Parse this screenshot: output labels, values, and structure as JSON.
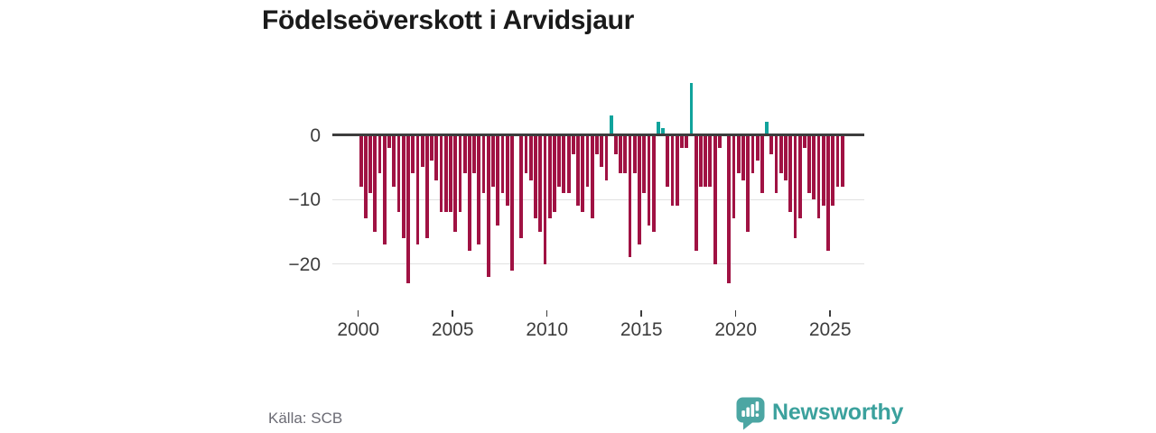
{
  "title": "Födelseöverskott i Arvidsjaur",
  "source": "Källa: SCB",
  "brand": {
    "name": "Newsworthy"
  },
  "colors": {
    "negative_bar": "#a01243",
    "positive_bar": "#10a39c",
    "zero_axis": "#3d3d3d",
    "gridline": "#e1e1e1",
    "brand_teal": "#4ca6a3"
  },
  "chart_data": {
    "type": "bar",
    "title": "Födelseöverskott i Arvidsjaur",
    "frequency": "quarterly",
    "x_start": "2000 Q1",
    "x_end": "2025 Q3",
    "grid": "horizontal",
    "legend": "none",
    "ylim": [
      -25,
      9
    ],
    "yticks": [
      0,
      -10,
      -20
    ],
    "ytick_labels": [
      "0",
      "−10",
      "−20"
    ],
    "xticks": [
      2000,
      2005,
      2010,
      2015,
      2020,
      2025
    ],
    "xtick_labels": [
      "2000",
      "2005",
      "2010",
      "2015",
      "2020",
      "2025"
    ],
    "positive_color": "#10a39c",
    "negative_color": "#a01243",
    "categories": [
      "2000 Q1",
      "2000 Q2",
      "2000 Q3",
      "2000 Q4",
      "2001 Q1",
      "2001 Q2",
      "2001 Q3",
      "2001 Q4",
      "2002 Q1",
      "2002 Q2",
      "2002 Q3",
      "2002 Q4",
      "2003 Q1",
      "2003 Q2",
      "2003 Q3",
      "2003 Q4",
      "2004 Q1",
      "2004 Q2",
      "2004 Q3",
      "2004 Q4",
      "2005 Q1",
      "2005 Q2",
      "2005 Q3",
      "2005 Q4",
      "2006 Q1",
      "2006 Q2",
      "2006 Q3",
      "2006 Q4",
      "2007 Q1",
      "2007 Q2",
      "2007 Q3",
      "2007 Q4",
      "2008 Q1",
      "2008 Q2",
      "2008 Q3",
      "2008 Q4",
      "2009 Q1",
      "2009 Q2",
      "2009 Q3",
      "2009 Q4",
      "2010 Q1",
      "2010 Q2",
      "2010 Q3",
      "2010 Q4",
      "2011 Q1",
      "2011 Q2",
      "2011 Q3",
      "2011 Q4",
      "2012 Q1",
      "2012 Q2",
      "2012 Q3",
      "2012 Q4",
      "2013 Q1",
      "2013 Q2",
      "2013 Q3",
      "2013 Q4",
      "2014 Q1",
      "2014 Q2",
      "2014 Q3",
      "2014 Q4",
      "2015 Q1",
      "2015 Q2",
      "2015 Q3",
      "2015 Q4",
      "2016 Q1",
      "2016 Q2",
      "2016 Q3",
      "2016 Q4",
      "2017 Q1",
      "2017 Q2",
      "2017 Q3",
      "2017 Q4",
      "2018 Q1",
      "2018 Q2",
      "2018 Q3",
      "2018 Q4",
      "2019 Q1",
      "2019 Q2",
      "2019 Q3",
      "2019 Q4",
      "2020 Q1",
      "2020 Q2",
      "2020 Q3",
      "2020 Q4",
      "2021 Q1",
      "2021 Q2",
      "2021 Q3",
      "2021 Q4",
      "2022 Q1",
      "2022 Q2",
      "2022 Q3",
      "2022 Q4",
      "2023 Q1",
      "2023 Q2",
      "2023 Q3",
      "2023 Q4",
      "2024 Q1",
      "2024 Q2",
      "2024 Q3",
      "2024 Q4",
      "2025 Q1",
      "2025 Q2",
      "2025 Q3"
    ],
    "values": [
      -8,
      -13,
      -9,
      -15,
      -6,
      -17,
      -2,
      -8,
      -12,
      -16,
      -23,
      -6,
      -17,
      -5,
      -16,
      -4,
      -7,
      -12,
      -12,
      -12,
      -15,
      -12,
      -6,
      -18,
      -6,
      -17,
      -9,
      -22,
      -8,
      -14,
      -9,
      -11,
      -21,
      0,
      -16,
      -6,
      -7,
      -13,
      -15,
      -20,
      -13,
      -12,
      -8,
      -9,
      -9,
      -3,
      -11,
      -12,
      -8,
      -13,
      -3,
      -5,
      -7,
      3,
      -3,
      -6,
      -6,
      -19,
      -6,
      -17,
      -9,
      -14,
      -15,
      2,
      1,
      -8,
      -11,
      -11,
      -2,
      -2,
      8,
      -18,
      -8,
      -8,
      -8,
      -20,
      -2,
      0,
      -23,
      -13,
      -6,
      -7,
      -15,
      -6,
      -4,
      -9,
      2,
      -3,
      -9,
      -6,
      -7,
      -12,
      -16,
      -13,
      -2,
      -9,
      -10,
      -13,
      -11,
      -18,
      -11,
      -8,
      -8
    ]
  }
}
